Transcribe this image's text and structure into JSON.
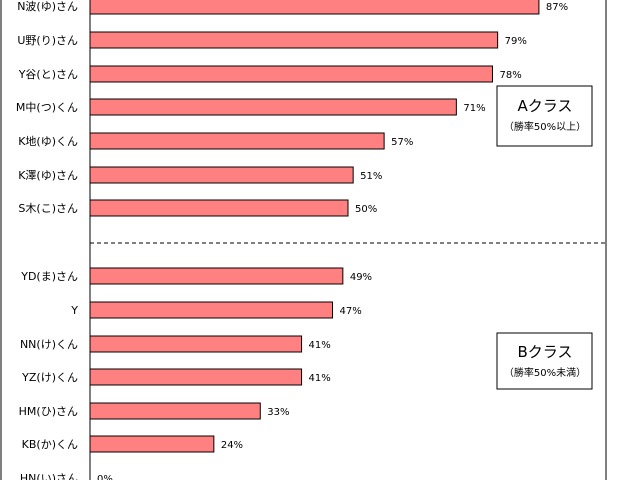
{
  "chart_data": {
    "type": "bar",
    "orientation": "horizontal",
    "colors": {
      "bar": "#ff8080",
      "bar_stroke": "#000000"
    },
    "categories": [
      "N波(ゆ)さん",
      "U野(り)さん",
      "Y谷(と)さん",
      "M中(つ)くん",
      "K地(ゆ)くん",
      "K澤(ゆ)さん",
      "S木(こ)さん",
      "YD(ま)さん",
      "Y",
      "NN(け)くん",
      "YZ(け)くん",
      "HM(ひ)さん",
      "KB(か)くん",
      "HN(い)さん"
    ],
    "values": [
      87,
      79,
      78,
      71,
      57,
      51,
      50,
      49,
      47,
      41,
      41,
      33,
      24,
      0
    ],
    "value_labels": [
      "87%",
      "79%",
      "78%",
      "71%",
      "57%",
      "51%",
      "50%",
      "49%",
      "47%",
      "41%",
      "41%",
      "33%",
      "24%",
      "0%"
    ],
    "xlim": [
      0,
      100
    ],
    "annotations": [
      {
        "title": "Aクラス",
        "subtitle": "（勝率50%以上）"
      },
      {
        "title": "Bクラス",
        "subtitle": "（勝率50%未満）"
      }
    ],
    "class_divider_after_index": 6
  }
}
